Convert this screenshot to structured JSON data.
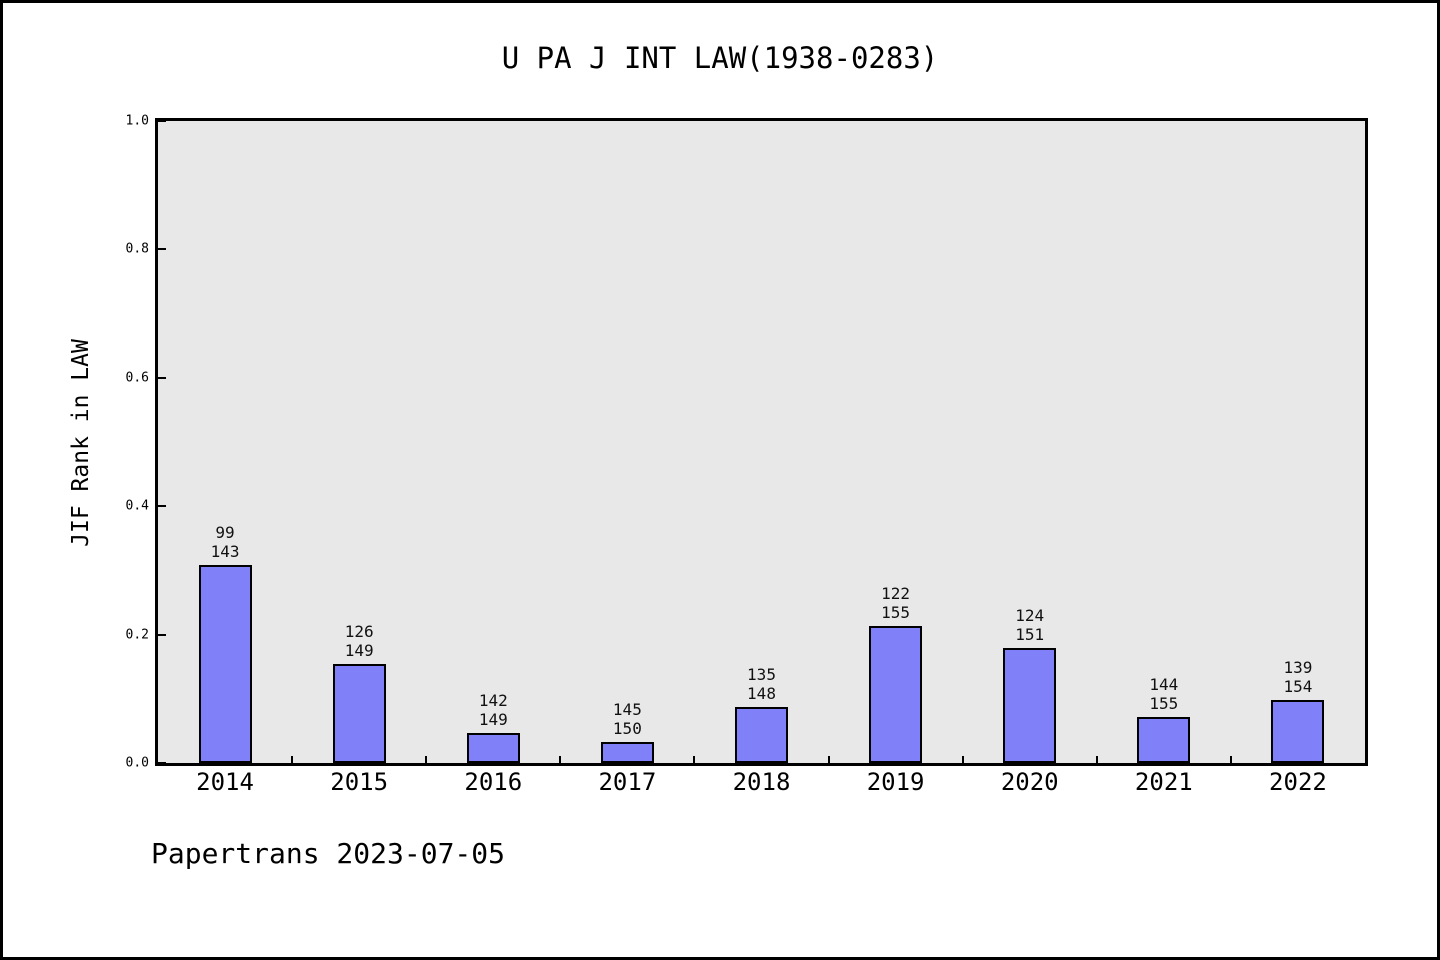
{
  "title": "U PA J INT LAW(1938-0283)",
  "footer": "Papertrans 2023-07-05",
  "colors": {
    "figure_bg": "#ffffff",
    "plot_bg": "#e8e8e8",
    "bar_fill": "#8080f8",
    "bar_edge": "#000000",
    "frame": "#000000"
  },
  "chart_data": {
    "type": "bar",
    "title": "U PA J INT LAW(1938-0283)",
    "xlabel": "",
    "ylabel": "JIF Rank in LAW",
    "ylim": [
      0.0,
      1.0
    ],
    "yticks": [
      "0.0",
      "0.2",
      "0.4",
      "0.6",
      "0.8",
      "1.0"
    ],
    "grid": false,
    "legend": "none",
    "categories": [
      "2014",
      "2015",
      "2016",
      "2017",
      "2018",
      "2019",
      "2020",
      "2021",
      "2022"
    ],
    "series": [
      {
        "name": "JIF Rank in LAW",
        "values": [
          0.3077,
          0.1544,
          0.047,
          0.0333,
          0.0878,
          0.2129,
          0.1788,
          0.071,
          0.0974
        ]
      }
    ],
    "bar_labels": [
      {
        "rank": "99",
        "total": "143"
      },
      {
        "rank": "126",
        "total": "149"
      },
      {
        "rank": "142",
        "total": "149"
      },
      {
        "rank": "145",
        "total": "150"
      },
      {
        "rank": "135",
        "total": "148"
      },
      {
        "rank": "122",
        "total": "155"
      },
      {
        "rank": "124",
        "total": "151"
      },
      {
        "rank": "144",
        "total": "155"
      },
      {
        "rank": "139",
        "total": "154"
      }
    ]
  }
}
